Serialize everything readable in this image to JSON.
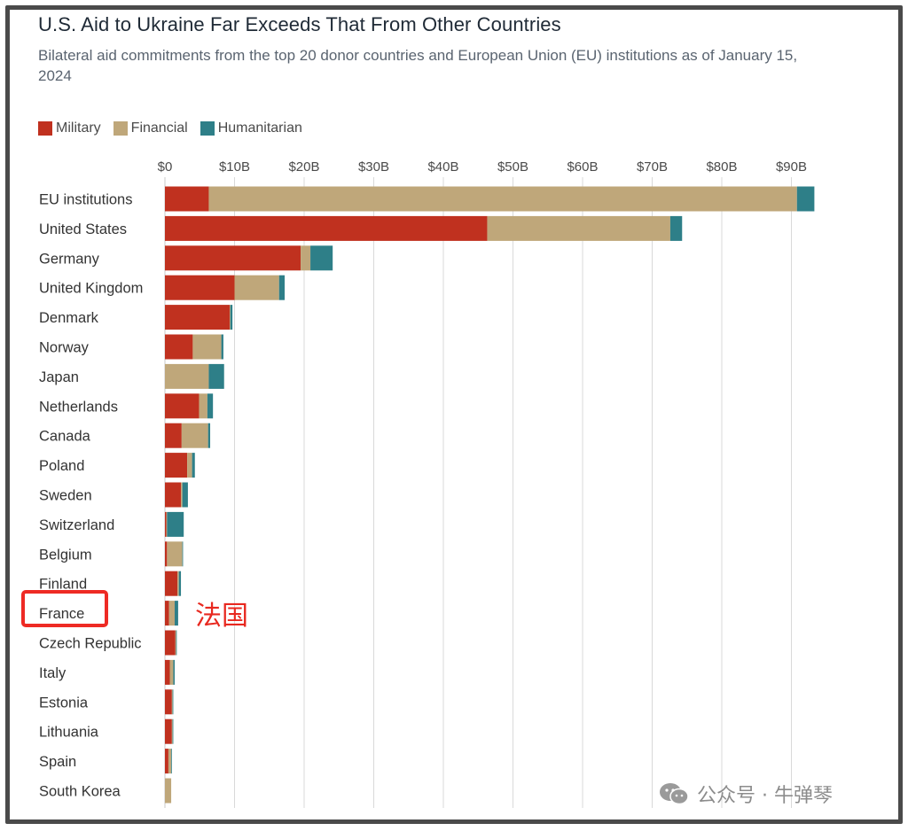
{
  "header": {
    "title": "U.S. Aid to Ukraine Far Exceeds That From Other Countries",
    "subtitle": "Bilateral aid commitments from the top 20 donor countries and European Union (EU) institutions as of January 15, 2024"
  },
  "legend": [
    {
      "label": "Military",
      "color": "#c0311f"
    },
    {
      "label": "Financial",
      "color": "#bfa77a"
    },
    {
      "label": "Humanitarian",
      "color": "#2e7f88"
    }
  ],
  "annotation": {
    "text": "法国",
    "highlighted_category": "France",
    "color": "#e8281f"
  },
  "watermark": {
    "text": "公众号 · 牛弹琴",
    "icon": "wechat-icon"
  },
  "chart_data": {
    "type": "bar",
    "orientation": "horizontal",
    "stacked": true,
    "title": "U.S. Aid to Ukraine Far Exceeds That From Other Countries",
    "xlabel": "",
    "ylabel": "",
    "xlim": [
      0,
      95
    ],
    "grid": true,
    "legend_position": "top-left",
    "ticks": [
      "$0",
      "$10B",
      "$20B",
      "$30B",
      "$40B",
      "$50B",
      "$60B",
      "$70B",
      "$80B",
      "$90B"
    ],
    "tick_values": [
      0,
      10,
      20,
      30,
      40,
      50,
      60,
      70,
      80,
      90
    ],
    "categories": [
      "EU institutions",
      "United States",
      "Germany",
      "United Kingdom",
      "Denmark",
      "Norway",
      "Japan",
      "Netherlands",
      "Canada",
      "Poland",
      "Sweden",
      "Switzerland",
      "Belgium",
      "Finland",
      "France",
      "Czech Republic",
      "Italy",
      "Estonia",
      "Lithuania",
      "Spain",
      "South Korea"
    ],
    "series": [
      {
        "name": "Military",
        "color": "#c0311f",
        "values": [
          6.3,
          46.3,
          19.5,
          10.0,
          9.3,
          4.0,
          0.0,
          4.9,
          2.4,
          3.2,
          2.3,
          0.2,
          0.3,
          1.8,
          0.6,
          1.5,
          0.7,
          1.0,
          1.0,
          0.5,
          0.0
        ]
      },
      {
        "name": "Financial",
        "color": "#bfa77a",
        "values": [
          84.5,
          26.3,
          1.4,
          6.4,
          0.1,
          4.1,
          6.3,
          1.2,
          3.8,
          0.7,
          0.2,
          0.1,
          2.2,
          0.2,
          0.8,
          0.1,
          0.5,
          0.1,
          0.1,
          0.4,
          0.9
        ]
      },
      {
        "name": "Humanitarian",
        "color": "#2e7f88",
        "values": [
          2.5,
          1.7,
          3.2,
          0.8,
          0.3,
          0.3,
          2.2,
          0.8,
          0.3,
          0.4,
          0.8,
          2.4,
          0.1,
          0.3,
          0.5,
          0.1,
          0.2,
          0.1,
          0.1,
          0.1,
          0.0
        ]
      }
    ]
  }
}
